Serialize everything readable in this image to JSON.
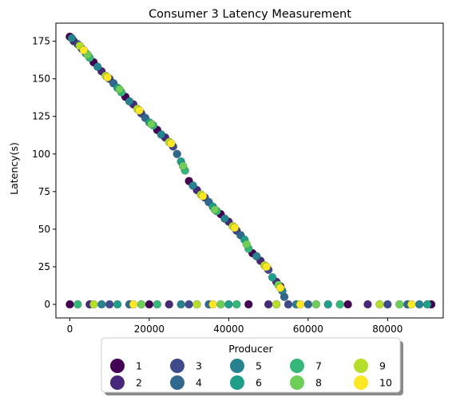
{
  "chart_data": {
    "type": "scatter",
    "title": "Consumer 3 Latency Measurement",
    "xlabel": "",
    "ylabel": "Latency(s)",
    "xlim": [
      -3500,
      94000
    ],
    "ylim": [
      -9,
      187
    ],
    "x_ticks": [
      0,
      20000,
      40000,
      60000,
      80000
    ],
    "x_tick_labels": [
      "0",
      "20000",
      "40000",
      "60000",
      "80000"
    ],
    "y_ticks": [
      0,
      25,
      50,
      75,
      100,
      125,
      150,
      175
    ],
    "y_tick_labels": [
      "0",
      "25",
      "50",
      "75",
      "100",
      "125",
      "150",
      "175"
    ],
    "grid": false,
    "legend": {
      "title": "Producer",
      "placement": "bottom-center",
      "columns": 5,
      "entries": [
        "1",
        "2",
        "3",
        "4",
        "5",
        "6",
        "7",
        "8",
        "9",
        "10"
      ]
    },
    "series": [
      {
        "name": "1",
        "color": "#440154",
        "points": [
          [
            0,
            178
          ],
          [
            6000,
            161
          ],
          [
            14000,
            138
          ],
          [
            22000,
            116
          ],
          [
            30000,
            82
          ],
          [
            38000,
            60
          ],
          [
            46000,
            34
          ],
          [
            53000,
            12
          ],
          [
            0,
            0
          ],
          [
            20000,
            0
          ],
          [
            45000,
            0
          ],
          [
            70000,
            0
          ],
          [
            91000,
            0
          ]
        ]
      },
      {
        "name": "2",
        "color": "#482878",
        "points": [
          [
            1000,
            175
          ],
          [
            8000,
            155
          ],
          [
            16000,
            133
          ],
          [
            24000,
            111
          ],
          [
            32000,
            76
          ],
          [
            40000,
            55
          ],
          [
            48000,
            29
          ],
          [
            52000,
            15
          ],
          [
            5000,
            0
          ],
          [
            25000,
            0
          ],
          [
            50000,
            0
          ],
          [
            75000,
            0
          ]
        ]
      },
      {
        "name": "3",
        "color": "#3e4a89",
        "points": [
          [
            2000,
            173
          ],
          [
            10000,
            150
          ],
          [
            18000,
            127
          ],
          [
            26000,
            105
          ],
          [
            34000,
            71
          ],
          [
            42000,
            49
          ],
          [
            50000,
            23
          ],
          [
            10000,
            0
          ],
          [
            30000,
            0
          ],
          [
            55000,
            0
          ],
          [
            80000,
            0
          ]
        ]
      },
      {
        "name": "4",
        "color": "#31688e",
        "points": [
          [
            3000,
            170
          ],
          [
            11000,
            147
          ],
          [
            19000,
            124
          ],
          [
            27000,
            100
          ],
          [
            35000,
            68
          ],
          [
            43000,
            46
          ],
          [
            54000,
            5
          ],
          [
            15000,
            0
          ],
          [
            35000,
            0
          ],
          [
            60000,
            0
          ],
          [
            85000,
            0
          ]
        ]
      },
      {
        "name": "5",
        "color": "#26828e",
        "points": [
          [
            500,
            177
          ],
          [
            7000,
            158
          ],
          [
            15000,
            135
          ],
          [
            23000,
            113
          ],
          [
            31000,
            79
          ],
          [
            39000,
            57
          ],
          [
            47000,
            32
          ],
          [
            53500,
            9
          ],
          [
            8000,
            0
          ],
          [
            28000,
            0
          ],
          [
            57000,
            0
          ],
          [
            88000,
            0
          ]
        ]
      },
      {
        "name": "6",
        "color": "#1f9e89",
        "points": [
          [
            4000,
            167
          ],
          [
            12000,
            144
          ],
          [
            20000,
            121
          ],
          [
            28000,
            95
          ],
          [
            36000,
            65
          ],
          [
            44000,
            43
          ],
          [
            51000,
            18
          ],
          [
            12000,
            0
          ],
          [
            40000,
            0
          ],
          [
            65000,
            0
          ],
          [
            90000,
            0
          ]
        ]
      },
      {
        "name": "7",
        "color": "#35b779",
        "points": [
          [
            5000,
            164
          ],
          [
            13000,
            141
          ],
          [
            21000,
            119
          ],
          [
            29000,
            89
          ],
          [
            37000,
            62
          ],
          [
            45000,
            37
          ],
          [
            2000,
            0
          ],
          [
            22000,
            0
          ],
          [
            42000,
            0
          ],
          [
            68000,
            0
          ]
        ]
      },
      {
        "name": "8",
        "color": "#6ece58",
        "points": [
          [
            4500,
            166
          ],
          [
            12500,
            143
          ],
          [
            20500,
            120
          ],
          [
            28500,
            92
          ],
          [
            36500,
            63
          ],
          [
            44500,
            40
          ],
          [
            52500,
            13
          ],
          [
            18000,
            0
          ],
          [
            38000,
            0
          ],
          [
            62000,
            0
          ],
          [
            83000,
            0
          ]
        ]
      },
      {
        "name": "9",
        "color": "#b5de2b",
        "points": [
          [
            2500,
            172
          ],
          [
            9000,
            152
          ],
          [
            17000,
            130
          ],
          [
            25000,
            108
          ],
          [
            33000,
            73
          ],
          [
            41000,
            52
          ],
          [
            49000,
            26
          ],
          [
            6000,
            0
          ],
          [
            32000,
            0
          ],
          [
            52000,
            0
          ],
          [
            78000,
            0
          ]
        ]
      },
      {
        "name": "10",
        "color": "#fde725",
        "points": [
          [
            3500,
            169
          ],
          [
            9500,
            151
          ],
          [
            17500,
            129
          ],
          [
            25500,
            107
          ],
          [
            33500,
            72
          ],
          [
            41500,
            51
          ],
          [
            49500,
            25
          ],
          [
            53000,
            11
          ],
          [
            16000,
            0
          ],
          [
            36000,
            0
          ],
          [
            58000,
            0
          ],
          [
            86000,
            0
          ]
        ]
      }
    ]
  }
}
